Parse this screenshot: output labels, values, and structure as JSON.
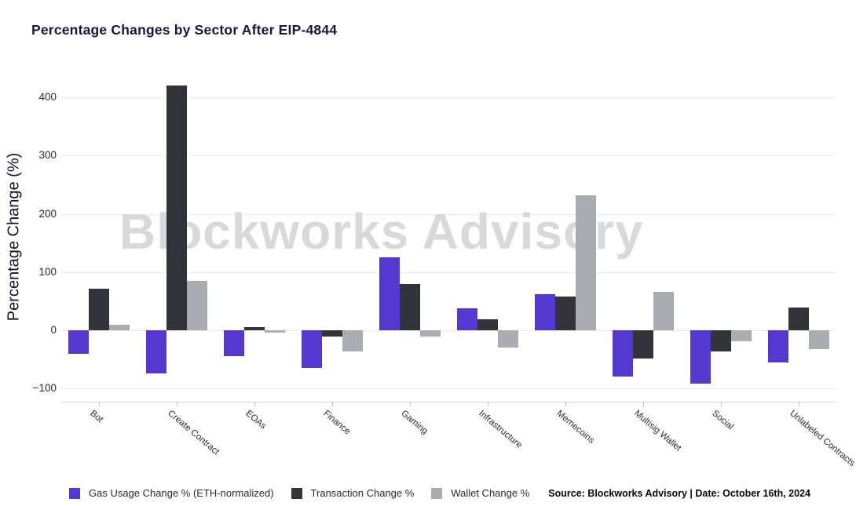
{
  "title": "Percentage Changes by Sector After EIP-4844",
  "watermark": "Blockworks Advisory",
  "source_note": "Source: Blockworks Advisory | Date: October 16th, 2024",
  "colors": {
    "gas_usage": "#5438cf",
    "transaction": "#33343a",
    "wallet": "#aaacb1",
    "title_text": "#18153f",
    "watermark_text": "#d9d9db",
    "gridline": "#e9e9ec"
  },
  "chart_data": {
    "type": "bar",
    "title": "Percentage Changes by Sector After EIP-4844",
    "xlabel": "",
    "ylabel": "Percentage Change (%)",
    "ylim": [
      -120,
      425
    ],
    "yticks": [
      -100,
      0,
      100,
      200,
      300,
      400
    ],
    "grid": true,
    "legend_position": "bottom",
    "categories": [
      "Bot",
      "Create Contract",
      "EOAs",
      "Finance",
      "Gaming",
      "Infrastructure",
      "Memecoins",
      "Multisig Wallet",
      "Social",
      "Unlabeled Contracts"
    ],
    "series": [
      {
        "name": "Gas Usage Change % (ETH-normalized)",
        "color": "#5438cf",
        "values": [
          -40,
          -74,
          -45,
          -65,
          125,
          38,
          62,
          -80,
          -92,
          -55
        ]
      },
      {
        "name": "Transaction Change %",
        "color": "#33343a",
        "values": [
          72,
          420,
          5,
          -11,
          79,
          19,
          58,
          -49,
          -36,
          39
        ]
      },
      {
        "name": "Wallet Change %",
        "color": "#aaacb1",
        "values": [
          9,
          85,
          -4,
          -36,
          -11,
          -30,
          232,
          66,
          -19,
          -32
        ]
      }
    ]
  }
}
